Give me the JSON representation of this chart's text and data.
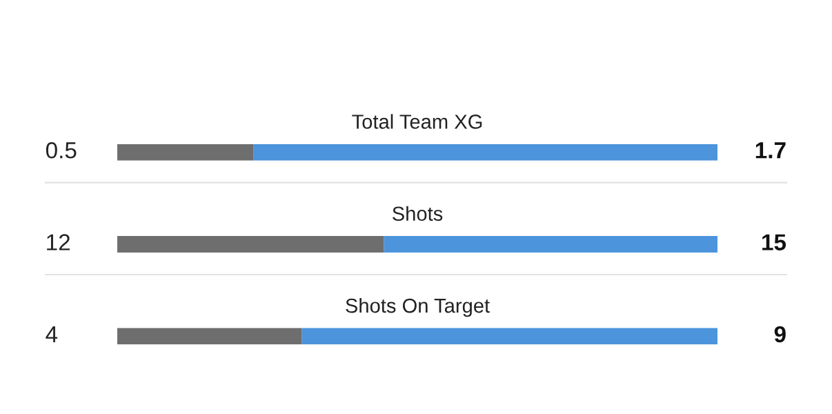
{
  "chart_data": [
    {
      "type": "bar",
      "orientation": "horizontal",
      "stacked": true,
      "title": "Total Team XG",
      "categories": [
        null
      ],
      "series": [
        {
          "color": "#6e6e6e",
          "values": [
            0.5
          ]
        },
        {
          "color": "#4c94dc",
          "values": [
            1.7
          ]
        }
      ],
      "data_labels": true
    },
    {
      "type": "bar",
      "orientation": "horizontal",
      "stacked": true,
      "title": "Shots",
      "categories": [
        null
      ],
      "series": [
        {
          "color": "#6e6e6e",
          "values": [
            12
          ]
        },
        {
          "color": "#4c94dc",
          "values": [
            15
          ]
        }
      ],
      "data_labels": true
    },
    {
      "type": "bar",
      "orientation": "horizontal",
      "stacked": true,
      "title": "Shots On Target",
      "categories": [
        null
      ],
      "series": [
        {
          "color": "#6e6e6e",
          "values": [
            4
          ]
        },
        {
          "color": "#4c94dc",
          "values": [
            9
          ]
        }
      ],
      "data_labels": true
    }
  ]
}
